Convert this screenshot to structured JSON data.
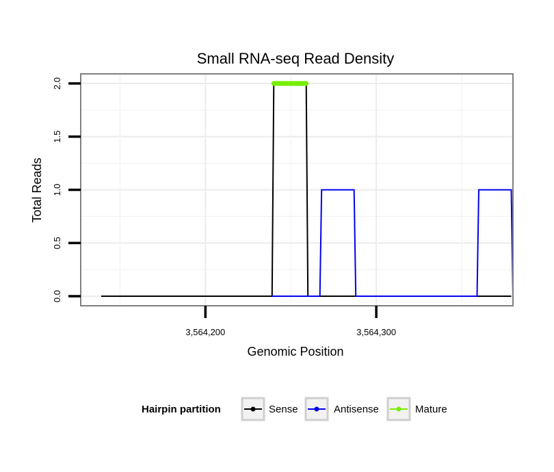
{
  "chart_data": {
    "type": "line",
    "title": "Small RNA-seq Read Density",
    "xlabel": "Genomic Position",
    "ylabel": "Total Reads",
    "xlim": [
      3564127,
      3564380
    ],
    "ylim": [
      -0.09,
      2.09
    ],
    "x_ticks": [
      3564200,
      3564300
    ],
    "x_tick_labels": [
      "3,564,200",
      "3,564,300"
    ],
    "y_ticks": [
      0,
      0.5,
      1,
      1.5,
      2
    ],
    "y_tick_labels": [
      "0.0",
      "0.5",
      "1.0",
      "1.5",
      "2.0"
    ],
    "grid": true,
    "legend_position": "bottom",
    "legend_title": "Hairpin partition",
    "series": [
      {
        "name": "Sense",
        "color": "#000000",
        "points": [
          [
            3564139,
            0
          ],
          [
            3564239,
            0
          ],
          [
            3564240,
            2
          ],
          [
            3564259,
            2
          ],
          [
            3564260,
            0
          ],
          [
            3564379,
            0
          ]
        ]
      },
      {
        "name": "Antisense",
        "color": "#0000ee",
        "points": [
          [
            3564239,
            0
          ],
          [
            3564267,
            0
          ],
          [
            3564268,
            1
          ],
          [
            3564287,
            1
          ],
          [
            3564288,
            0
          ],
          [
            3564359,
            0
          ],
          [
            3564360,
            1
          ],
          [
            3564379,
            1
          ],
          [
            3564380,
            0
          ]
        ]
      },
      {
        "name": "Mature",
        "color": "#76ee00",
        "points": [
          [
            3564240,
            2
          ],
          [
            3564259,
            2
          ]
        ]
      }
    ]
  }
}
